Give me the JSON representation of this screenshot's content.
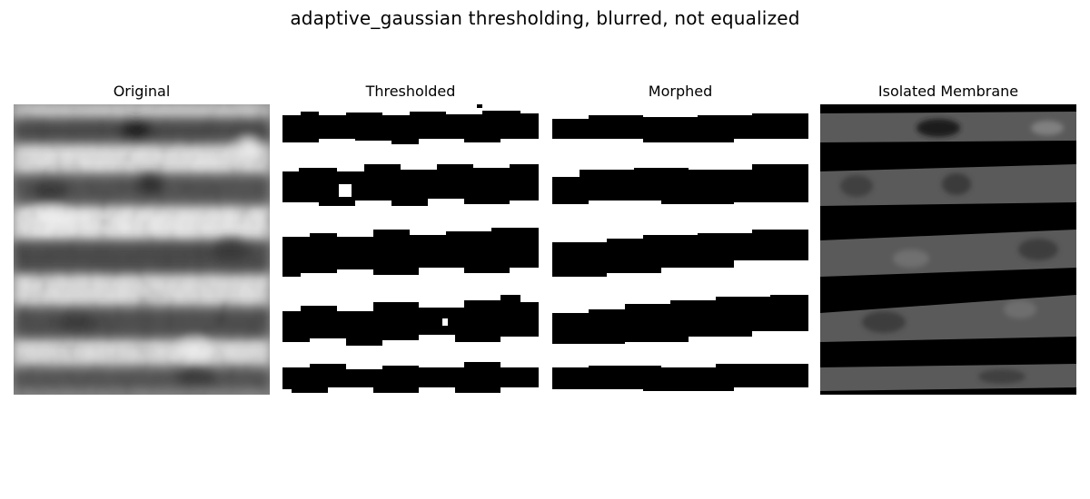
{
  "figure": {
    "suptitle": "adaptive_gaussian thresholding, blurred, not equalized",
    "panels": [
      {
        "title": "Original"
      },
      {
        "title": "Thresholded"
      },
      {
        "title": "Morphed"
      },
      {
        "title": "Isolated Membrane"
      }
    ]
  }
}
